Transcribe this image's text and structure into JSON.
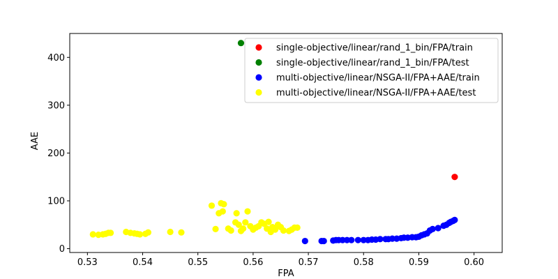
{
  "chart_data": {
    "type": "scatter",
    "title": "",
    "xlabel": "FPA",
    "ylabel": "AAE",
    "xlim": [
      0.5268,
      0.6051
    ],
    "ylim": [
      -8,
      450
    ],
    "xticks": [
      0.53,
      0.54,
      0.55,
      0.56,
      0.57,
      0.58,
      0.59,
      0.6
    ],
    "xtick_labels": [
      "0.53",
      "0.54",
      "0.55",
      "0.56",
      "0.57",
      "0.58",
      "0.59",
      "0.60"
    ],
    "yticks": [
      0,
      100,
      200,
      300,
      400
    ],
    "ytick_labels": [
      "0",
      "100",
      "200",
      "300",
      "400"
    ],
    "grid": false,
    "legend_position": "top-right",
    "series": [
      {
        "name": "single-objective/linear/rand_1_bin/FPA/train",
        "color": "#ff0000",
        "points": [
          [
            0.5965,
            150
          ]
        ]
      },
      {
        "name": "single-objective/linear/rand_1_bin/FPA/test",
        "color": "#008000",
        "points": [
          [
            0.5578,
            430
          ]
        ]
      },
      {
        "name": "multi-objective/linear/NSGA-II/FPA+AAE/train",
        "color": "#0000ff",
        "points": [
          [
            0.5694,
            16
          ],
          [
            0.5724,
            16
          ],
          [
            0.5728,
            16
          ],
          [
            0.5745,
            17
          ],
          [
            0.575,
            18
          ],
          [
            0.5755,
            18
          ],
          [
            0.5762,
            18
          ],
          [
            0.577,
            18
          ],
          [
            0.5778,
            18
          ],
          [
            0.579,
            18
          ],
          [
            0.58,
            18
          ],
          [
            0.5808,
            18
          ],
          [
            0.5815,
            19
          ],
          [
            0.5822,
            19
          ],
          [
            0.583,
            20
          ],
          [
            0.584,
            20
          ],
          [
            0.5845,
            20
          ],
          [
            0.5852,
            21
          ],
          [
            0.586,
            21
          ],
          [
            0.5868,
            22
          ],
          [
            0.5873,
            23
          ],
          [
            0.588,
            23
          ],
          [
            0.5888,
            24
          ],
          [
            0.5895,
            24
          ],
          [
            0.59,
            25
          ],
          [
            0.5905,
            28
          ],
          [
            0.591,
            30
          ],
          [
            0.5915,
            32
          ],
          [
            0.592,
            38
          ],
          [
            0.5925,
            41
          ],
          [
            0.5935,
            43
          ],
          [
            0.5945,
            48
          ],
          [
            0.595,
            50
          ],
          [
            0.5955,
            54
          ],
          [
            0.5958,
            56
          ],
          [
            0.5962,
            58
          ],
          [
            0.5965,
            60
          ]
        ]
      },
      {
        "name": "multi-objective/linear/NSGA-II/FPA+AAE/test",
        "color": "#ffff00",
        "points": [
          [
            0.531,
            30
          ],
          [
            0.532,
            29
          ],
          [
            0.5328,
            30
          ],
          [
            0.5333,
            31
          ],
          [
            0.5338,
            33
          ],
          [
            0.5342,
            33
          ],
          [
            0.537,
            35
          ],
          [
            0.5378,
            33
          ],
          [
            0.5385,
            32
          ],
          [
            0.539,
            31
          ],
          [
            0.5395,
            30
          ],
          [
            0.5405,
            31
          ],
          [
            0.541,
            34
          ],
          [
            0.545,
            35
          ],
          [
            0.547,
            34
          ],
          [
            0.5525,
            90
          ],
          [
            0.5532,
            41
          ],
          [
            0.5538,
            74
          ],
          [
            0.5542,
            95
          ],
          [
            0.5545,
            78
          ],
          [
            0.5547,
            93
          ],
          [
            0.5555,
            42
          ],
          [
            0.556,
            38
          ],
          [
            0.5568,
            55
          ],
          [
            0.557,
            74
          ],
          [
            0.5574,
            50
          ],
          [
            0.5578,
            37
          ],
          [
            0.5582,
            42
          ],
          [
            0.5586,
            55
          ],
          [
            0.559,
            78
          ],
          [
            0.5595,
            47
          ],
          [
            0.56,
            40
          ],
          [
            0.5605,
            44
          ],
          [
            0.561,
            47
          ],
          [
            0.5615,
            55
          ],
          [
            0.562,
            52
          ],
          [
            0.5625,
            42
          ],
          [
            0.5628,
            56
          ],
          [
            0.5632,
            35
          ],
          [
            0.5635,
            45
          ],
          [
            0.564,
            40
          ],
          [
            0.5645,
            50
          ],
          [
            0.565,
            45
          ],
          [
            0.5655,
            38
          ],
          [
            0.5665,
            37
          ],
          [
            0.567,
            40
          ],
          [
            0.5675,
            44
          ],
          [
            0.568,
            44
          ]
        ]
      }
    ]
  }
}
